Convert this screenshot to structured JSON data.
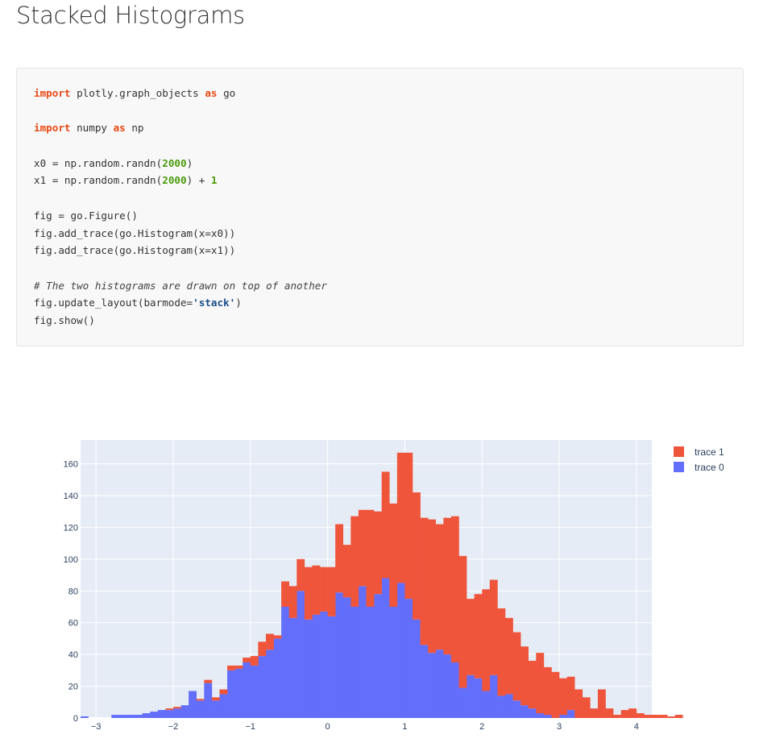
{
  "page": {
    "title": "Stacked Histograms"
  },
  "code": {
    "lines": [
      [
        {
          "t": "import",
          "c": "kw"
        },
        {
          "t": " plotly.graph_objects "
        },
        {
          "t": "as",
          "c": "kw"
        },
        {
          "t": " go"
        }
      ],
      [],
      [
        {
          "t": "import",
          "c": "kw"
        },
        {
          "t": " numpy "
        },
        {
          "t": "as",
          "c": "kw"
        },
        {
          "t": " np"
        }
      ],
      [],
      [
        {
          "t": "x0 = np.random.randn("
        },
        {
          "t": "2000",
          "c": "num"
        },
        {
          "t": ")"
        }
      ],
      [
        {
          "t": "x1 = np.random.randn("
        },
        {
          "t": "2000",
          "c": "num"
        },
        {
          "t": ") + "
        },
        {
          "t": "1",
          "c": "num"
        }
      ],
      [],
      [
        {
          "t": "fig = go.Figure()"
        }
      ],
      [
        {
          "t": "fig.add_trace(go.Histogram(x=x0))"
        }
      ],
      [
        {
          "t": "fig.add_trace(go.Histogram(x=x1))"
        }
      ],
      [],
      [
        {
          "t": "# The two histograms are drawn on top of another",
          "c": "cmt"
        }
      ],
      [
        {
          "t": "fig.update_layout(barmode="
        },
        {
          "t": "'stack'",
          "c": "str"
        },
        {
          "t": ")"
        }
      ],
      [
        {
          "t": "fig.show()"
        }
      ]
    ]
  },
  "chart_data": {
    "type": "bar",
    "barmode": "stack",
    "xlim": [
      -3.2,
      4.2
    ],
    "ylim": [
      0,
      175
    ],
    "xticks": [
      -3,
      -2,
      -1,
      0,
      1,
      2,
      3,
      4
    ],
    "xtick_labels": [
      "−3",
      "−2",
      "−1",
      "0",
      "1",
      "2",
      "3",
      "4"
    ],
    "yticks": [
      0,
      20,
      40,
      60,
      80,
      100,
      120,
      140,
      160
    ],
    "bin_start": -3.2,
    "bin_width": 0.1,
    "background": "#e5ecf6",
    "grid": true,
    "legend": {
      "placement": "top-right",
      "order": [
        "trace 1",
        "trace 0"
      ]
    },
    "series": [
      {
        "name": "trace 0",
        "color": "#636efa",
        "values": [
          1,
          0,
          0,
          0,
          2,
          2,
          2,
          2,
          3,
          4,
          5,
          5,
          6,
          8,
          17,
          11,
          22,
          11,
          15,
          30,
          31,
          35,
          33,
          39,
          43,
          50,
          70,
          63,
          80,
          62,
          65,
          67,
          64,
          79,
          76,
          70,
          83,
          70,
          78,
          88,
          70,
          85,
          75,
          62,
          46,
          41,
          43,
          40,
          35,
          19,
          27,
          25,
          17,
          27,
          14,
          15,
          11,
          8,
          6,
          3,
          2,
          0,
          2,
          5,
          0,
          0,
          0,
          0,
          0,
          0,
          0,
          0,
          0,
          0
        ]
      },
      {
        "name": "trace 1",
        "color": "#ef553b",
        "values": [
          0,
          0,
          0,
          0,
          0,
          0,
          0,
          0,
          0,
          0,
          0,
          1,
          1,
          0,
          0,
          1,
          2,
          2,
          3,
          3,
          2,
          3,
          6,
          9,
          10,
          2,
          16,
          20,
          20,
          33,
          31,
          28,
          31,
          43,
          33,
          57,
          48,
          61,
          52,
          67,
          65,
          82,
          92,
          80,
          80,
          84,
          79,
          86,
          92,
          83,
          48,
          53,
          64,
          60,
          55,
          48,
          43,
          37,
          30,
          38,
          30,
          29,
          23,
          21,
          18,
          13,
          6,
          18,
          6,
          2,
          5,
          6,
          3,
          2,
          2,
          2,
          1,
          2
        ]
      }
    ]
  }
}
